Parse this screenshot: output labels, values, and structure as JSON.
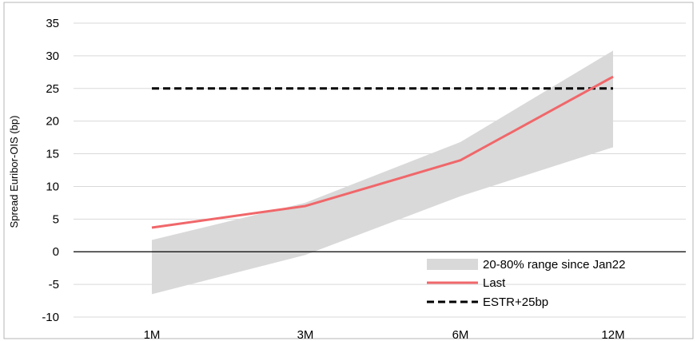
{
  "chart_data": {
    "type": "line",
    "title": "",
    "xlabel": "",
    "ylabel": "Spread Euribor-OIS (bp)",
    "categories": [
      "1M",
      "3M",
      "6M",
      "12M"
    ],
    "ylim": [
      -10,
      35
    ],
    "yticks": [
      35,
      30,
      25,
      20,
      15,
      10,
      5,
      0,
      -5,
      -10
    ],
    "grid": "horizontal",
    "legend_position": "bottom-right",
    "range": {
      "name": "20-80% range since Jan22",
      "low": [
        -6.5,
        -0.5,
        8.5,
        16
      ],
      "high": [
        1.8,
        7.5,
        16.8,
        30.8
      ],
      "color": "#d9d9d9"
    },
    "series": [
      {
        "name": "Last",
        "values": [
          3.7,
          7,
          14,
          26.8
        ],
        "color": "#f0676a",
        "style": "solid"
      },
      {
        "name": "ESTR+25bp",
        "values": [
          25,
          25,
          25,
          25
        ],
        "color": "#000000",
        "style": "dashed"
      }
    ]
  }
}
